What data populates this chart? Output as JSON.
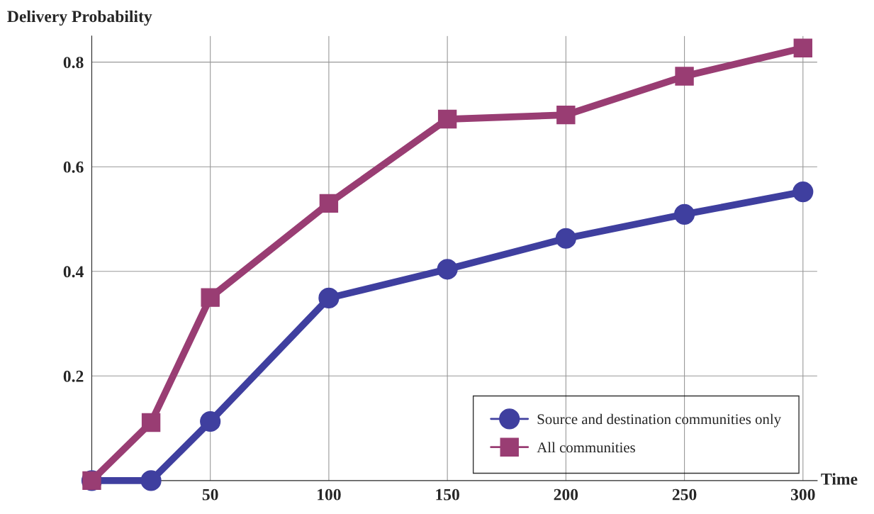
{
  "chart_data": {
    "type": "line",
    "xlabel": "Time",
    "ylabel": "Delivery Probability",
    "x": [
      0,
      25,
      50,
      100,
      150,
      200,
      250,
      300
    ],
    "series": [
      {
        "name": "Source and destination communities only",
        "color": "#3f3f9f",
        "marker": "circle",
        "values": [
          0,
          0,
          0.113,
          0.349,
          0.404,
          0.463,
          0.509,
          0.552
        ]
      },
      {
        "name": "All communities",
        "color": "#993d73",
        "marker": "square",
        "values": [
          0,
          0.111,
          0.35,
          0.53,
          0.691,
          0.699,
          0.773,
          0.827
        ]
      }
    ],
    "xlim": [
      0,
      306
    ],
    "ylim": [
      0,
      0.85
    ],
    "xticks": [
      50,
      100,
      150,
      200,
      250,
      300
    ],
    "yticks": [
      0.2,
      0.4,
      0.6,
      0.8
    ],
    "grid": true,
    "legend": "bottom right",
    "line_style": "solid"
  }
}
